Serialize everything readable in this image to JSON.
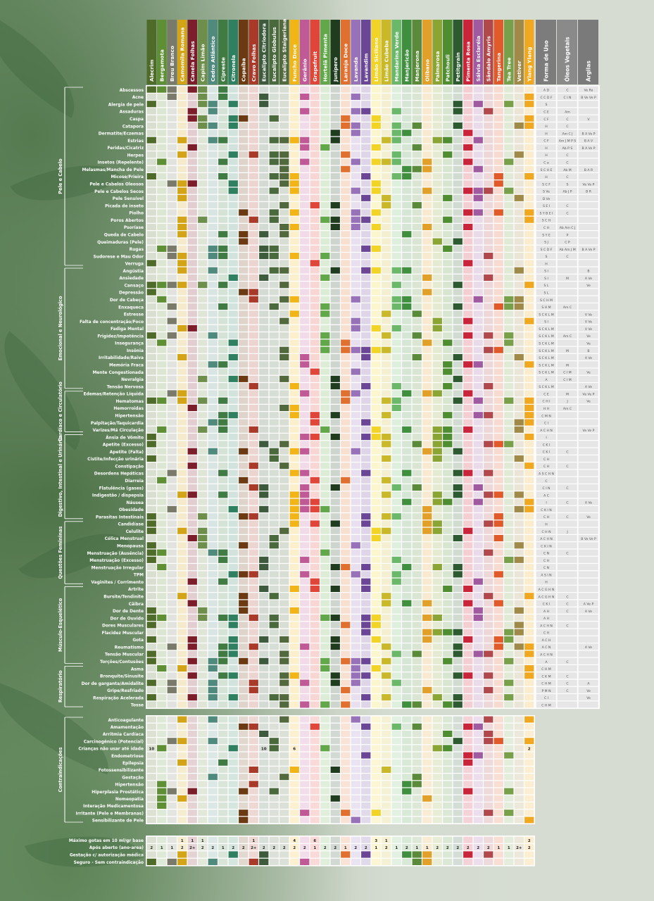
{
  "oils": [
    {
      "name": "Alecrim",
      "color": "#4f6b2a"
    },
    {
      "name": "Bergamota",
      "color": "#5f8f35"
    },
    {
      "name": "Breu Branco",
      "color": "#7a7a6a"
    },
    {
      "name": "Camomila Romana",
      "color": "#d3a418"
    },
    {
      "name": "Canela Folhas",
      "color": "#7b1d2a"
    },
    {
      "name": "Capim Limão",
      "color": "#6e8f4c"
    },
    {
      "name": "Cedro Atlântico",
      "color": "#4f8a7c"
    },
    {
      "name": "Cipreste",
      "color": "#3f7b43"
    },
    {
      "name": "Citronela",
      "color": "#2e8060"
    },
    {
      "name": "Copaíba",
      "color": "#6b3a12"
    },
    {
      "name": "Cravo Folhas",
      "color": "#a93a2a"
    },
    {
      "name": "Eucalipto Citriodora",
      "color": "#3d5b3c"
    },
    {
      "name": "Eucalipto Globulus",
      "color": "#4a6a3e"
    },
    {
      "name": "Eucalipto Staigeriana",
      "color": "#52693d"
    },
    {
      "name": "Funcho Doce",
      "color": "#f2b518"
    },
    {
      "name": "Gerânio",
      "color": "#c05a96"
    },
    {
      "name": "Grapefruit",
      "color": "#e0453a"
    },
    {
      "name": "Hortelã Pimenta",
      "color": "#62a84a"
    },
    {
      "name": "Junípero",
      "color": "#1f3d1e"
    },
    {
      "name": "Laranja Doce",
      "color": "#e07030"
    },
    {
      "name": "Lavanda",
      "color": "#9872b8"
    },
    {
      "name": "Lavandim",
      "color": "#6b4596"
    },
    {
      "name": "Limão Siciliano",
      "color": "#f1d426"
    },
    {
      "name": "Limão Cubeba",
      "color": "#c8b82a"
    },
    {
      "name": "Mandarina Verde",
      "color": "#6cb86a"
    },
    {
      "name": "Manjericão",
      "color": "#3f8f3e"
    },
    {
      "name": "Manjerona",
      "color": "#5a8a3a"
    },
    {
      "name": "Olíbano",
      "color": "#e0a02a"
    },
    {
      "name": "Palmarosa",
      "color": "#8ba535"
    },
    {
      "name": "Patchouli",
      "color": "#4e8d30"
    },
    {
      "name": "Petitgrain",
      "color": "#2e5a32"
    },
    {
      "name": "Pimenta Rosa",
      "color": "#c8243a"
    },
    {
      "name": "Sálvia Esclaréia",
      "color": "#a05aa0"
    },
    {
      "name": "Sândalo Amyris",
      "color": "#b0484c"
    },
    {
      "name": "Tangerina",
      "color": "#e05a2a"
    },
    {
      "name": "Tea Tree",
      "color": "#78a04a"
    },
    {
      "name": "Vetiver",
      "color": "#a08a4a"
    },
    {
      "name": "Ylang Ylang",
      "color": "#f0a820"
    }
  ],
  "extra_columns": [
    {
      "name": "Forma de Uso",
      "color": "#7c7c7c"
    },
    {
      "name": "Óleos Vegetais",
      "color": "#8a8a8a"
    },
    {
      "name": "Argilas",
      "color": "#7a7a7a"
    }
  ],
  "sections": [
    {
      "name": "Pele e Cabelo",
      "rows": [
        "Abscessos",
        "Acne",
        "Alergia de pele",
        "Assaduras",
        "Caspa",
        "Catapora",
        "Dermatite/Eczemas",
        "Estrias",
        "Feridas/Cicatriz",
        "Herpes",
        "Insetos (Repelente)",
        "Melasmas/Mancha de Pele",
        "Micose/Frieira",
        "Pele e Cabelos Oleosos",
        "Pele e Cabelos Secos",
        "Pele Sensível",
        "Picada de inseto",
        "Piolho",
        "Poros Abertos",
        "Psoríase",
        "Queda de Cabelo",
        "Queimaduras (Pele)",
        "Rugas",
        "Sudorese e Mau Odor",
        "Verruga"
      ]
    },
    {
      "name": "Emocional e Neurológico",
      "rows": [
        "Angústia",
        "Ansiedade",
        "Cansaço",
        "Depressão",
        "Dor de Cabeça",
        "Enxaqueca",
        "Estresse",
        "Falta de concentração/Foco",
        "Fadiga Mental",
        "Frigidez/Impotência",
        "Insegurança",
        "Insônia",
        "Irritabilidade/Raiva",
        "Memória Fraca",
        "Mente Congestionada",
        "Nevralgia",
        "Tensão Nervosa"
      ]
    },
    {
      "name": "Cardíaco e Circulatório",
      "rows": [
        "Edemas/Retenção Líquida",
        "Hematomas",
        "Hemorroidas",
        "Hipertensão",
        "Palpitação/Taquicardia",
        "Varizes/Má Circulação"
      ]
    },
    {
      "name": "Digestivo, Intestinal e Urinário",
      "rows": [
        "Ânsia de Vômito",
        "Apetite (Excesso)",
        "Apetite (Falta)",
        "Cistite/Infecção urinária",
        "Constipação",
        "Desordens Hepáticas",
        "Diarreia",
        "Flatulência (gases)",
        "Indigestão / dispepsia",
        "Náusea",
        "Obesidade",
        "Parasitas Intestinais"
      ]
    },
    {
      "name": "Questões Femininas",
      "rows": [
        "Candidíase",
        "Celulite",
        "Cólica Menstrual",
        "Menopausa",
        "Menstruação (Ausência)",
        "Menstruação (Excesso)",
        "Menstruação Irregular",
        "TPM",
        "Vaginites / Corrimento"
      ]
    },
    {
      "name": "Músculo-Esquelético",
      "rows": [
        "Artrite",
        "Bursite/Tendinite",
        "Cãibra",
        "Dor de Dente",
        "Dor de Ouvido",
        "Dores Musculares",
        "Flacidez Muscular",
        "Gota",
        "Reumatismo",
        "Tensão Muscular",
        "Torções/Contusões"
      ]
    },
    {
      "name": "Respiratório",
      "rows": [
        "Asma",
        "Bronquite/Sinusite",
        "Dor de garganta/Amidalite",
        "Gripe/Resfriado",
        "Respiração Acelerada",
        "Tosse"
      ]
    }
  ],
  "usage_codes": [
    "A D",
    "C C D F",
    "S",
    "C E",
    "C F",
    "H",
    "H",
    "C F",
    "H",
    "H",
    "C a",
    "S C H E",
    "H",
    "S C F",
    "S Ve",
    "D Ve",
    "S E I",
    "S Y B E I",
    "S C H",
    "C H",
    "S Y E",
    "S J",
    "S C D F",
    "S",
    "H",
    "S I",
    "S I",
    "S L",
    "S L",
    "S C H M",
    "S H M",
    "S C K L M",
    "S I",
    "S C K L M",
    "S C K L M",
    "S C K L M",
    "S C K L M",
    "S C K L M",
    "S C K L M",
    "S C K L M",
    "A",
    "S C K L M",
    "C E",
    "C H I",
    "H H",
    "C M N",
    "C I",
    "A C H N",
    "I",
    "C K I",
    "C K I",
    "C H",
    "C H",
    "A S C H N",
    "C",
    "C I N",
    "A C",
    "I",
    "C K I N",
    "C H",
    "H",
    "C H N",
    "A C H N",
    "C K I N",
    "C N",
    "C H",
    "C N",
    "A S I N",
    "H",
    "A C G H N",
    "A C G H N",
    "C K I",
    "A H",
    "A H",
    "A C H N",
    "C H",
    "A C H",
    "A C N",
    "A C H N",
    "A",
    "C H M",
    "C K M",
    "C H M",
    "P M N",
    "C I",
    "C H M"
  ],
  "veg_codes": [
    "C",
    "C I N",
    "",
    "Am",
    "C",
    "C",
    "Am C J",
    "Am J M P S",
    "Ab P S",
    "C",
    "C",
    "Ab M",
    "C",
    "S",
    "Ab J P",
    "",
    "C",
    "C",
    "",
    "Ab Am C J",
    "P",
    "C P",
    "Ab Am J M",
    "C",
    "",
    "",
    "M",
    "",
    "",
    "",
    "Am C",
    "",
    "",
    "",
    "Am C",
    "",
    "M",
    "",
    "M",
    "C I M",
    "C I M",
    "",
    "M",
    "J",
    "Am C",
    "",
    "",
    "",
    "",
    "",
    "C",
    "",
    "C",
    "",
    "",
    "C",
    "",
    "C",
    "",
    "C",
    "",
    "J",
    "",
    "",
    "C",
    "",
    "",
    "",
    "",
    "",
    "C",
    "C",
    "C",
    "",
    "C",
    "",
    "",
    "",
    "",
    "C",
    "",
    "C",
    "C",
    "C",
    "",
    "",
    ""
  ],
  "clay_codes": [
    "Ve Ro",
    "B Ve Ve P",
    "",
    "",
    "V",
    "",
    "B A Ve P",
    "B A V",
    "B A Ve P",
    "",
    "",
    "B A R",
    "",
    "Ve Ve P",
    "B R",
    "",
    "",
    "",
    "",
    "",
    "",
    "",
    "B A Ve P",
    "",
    "",
    "B",
    "A Ve",
    "Ve",
    "",
    "",
    "",
    "V Ve",
    "V Ve",
    "V Ve",
    "Ve",
    "Ve",
    "B",
    "A Ve",
    "",
    "Ve",
    "",
    "A Ve",
    "Ve Ve P",
    "Ve",
    "",
    "",
    "",
    "Ve Ve P",
    "",
    "",
    "",
    "",
    "",
    "",
    "",
    "",
    "",
    "A Ve",
    "",
    "Ve",
    "",
    "",
    "B Ve Ve P",
    "",
    "",
    "",
    "",
    "",
    "",
    "",
    "",
    "A Ve P",
    "A Ve",
    "",
    "",
    "",
    "",
    "A Ve",
    "",
    "",
    "",
    "",
    "A",
    "Ve",
    "Ve",
    "",
    "",
    "",
    ""
  ],
  "contra_section": {
    "name": "Contraindicações",
    "rows": [
      "Anticoagulante",
      "Amamentação",
      "Arritmia Cardíaca",
      "Carcinogênico (Potencial)",
      "Crianças não usar até idade",
      "Endometriose",
      "Epilepsia",
      "Fotossensibilizante",
      "Gestação",
      "Hipertensão",
      "Hiperplasia Prostática",
      "Nomeopatia",
      "Interação Medicamentosa",
      "Irritante (Pele e Membranas)",
      "Sensibilizante de Pele"
    ]
  },
  "children_ages": {
    "0": "10",
    "11": "10",
    "14": "6",
    "37": "2"
  },
  "footer": {
    "rows": [
      "Máximo gotas em 10 ml/gr base",
      "Após aberto (ano-area)",
      "Gestação c/ autorização médica",
      "Seguro - Sem contraindicação"
    ],
    "max_drops": {
      "3": "1",
      "4": "1",
      "5": "1",
      "10": "1",
      "14": "4",
      "16": "6",
      "22": "3",
      "23": "1",
      "37": "2"
    },
    "years": [
      "2",
      "1",
      "1",
      "2",
      "2+",
      "2",
      "2",
      "1",
      "2",
      "2",
      "2+",
      "2",
      "2",
      "2",
      "2",
      "2",
      "1",
      "2",
      "2",
      "1",
      "2",
      "2",
      "1",
      "2",
      "1",
      "2",
      "1",
      "1",
      "2",
      "2",
      "2",
      "2",
      "2",
      "2",
      "1",
      "1",
      "2+",
      "2"
    ]
  }
}
